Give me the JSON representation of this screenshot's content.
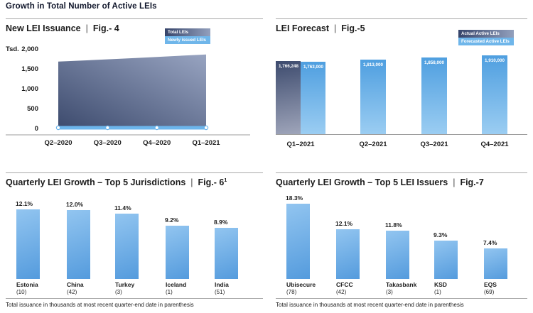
{
  "page_title": "Growth in Total Number of Active LEIs",
  "separator": "|",
  "colors": {
    "light_blue": "#6FB6EA",
    "dark_navy": "#3D4B6E",
    "gradient_gray_blue": "#9FA5BA",
    "bar_blue_top": "#4F9FE0",
    "bar_blue_bottom": "#9BCDF2",
    "bottom_bar_light": "#92C5F0",
    "bottom_bar_deep": "#549BDD",
    "rule_gray": "#A8A8A8"
  },
  "chart_data": [
    {
      "id": "fig4",
      "type": "area",
      "title": "New LEI Issuance",
      "fig_label": "Fig.- 4",
      "unit_label": "Tsd.",
      "legend_position": "top-right",
      "legend": [
        {
          "label": "Total LEIs",
          "swatch": "dark"
        },
        {
          "label": "Newly issued LEIs",
          "swatch": "light"
        }
      ],
      "x": [
        "Q2–2020",
        "Q3–2020",
        "Q4–2020",
        "Q1–2021"
      ],
      "series": [
        {
          "name": "Total LEIs",
          "values": [
            1700,
            1745,
            1805,
            1880
          ]
        },
        {
          "name": "Newly issued LEIs",
          "values": [
            45,
            50,
            55,
            60
          ]
        }
      ],
      "y_ticks": [
        "2,000",
        "1,500",
        "1,000",
        "500",
        "0"
      ],
      "ylim": [
        0,
        2000
      ],
      "grid": false
    },
    {
      "id": "fig5",
      "type": "bar",
      "title": "LEI Forecast",
      "fig_label": "Fig.-5",
      "legend_position": "top-right",
      "legend": [
        {
          "label": "Actual Active LEIs",
          "swatch": "dark"
        },
        {
          "label": "Forecasted Active LEIs",
          "swatch": "light"
        }
      ],
      "categories": [
        "Q1–2021",
        "Q2–2021",
        "Q3–2021",
        "Q4–2021"
      ],
      "bars": [
        {
          "category": "Q1–2021",
          "series": "Actual Active LEIs",
          "value": 1766248,
          "label": "1,766,248",
          "swatch": "dark"
        },
        {
          "category": "Q1–2021",
          "series": "Forecasted Active LEIs",
          "value": 1763000,
          "label": "1,763,000",
          "swatch": "light"
        },
        {
          "category": "Q2–2021",
          "series": "Forecasted Active LEIs",
          "value": 1813000,
          "label": "1,813,000",
          "swatch": "light"
        },
        {
          "category": "Q3–2021",
          "series": "Forecasted Active LEIs",
          "value": 1858000,
          "label": "1,858,000",
          "swatch": "light"
        },
        {
          "category": "Q4–2021",
          "series": "Forecasted Active LEIs",
          "value": 1910000,
          "label": "1,910,000",
          "swatch": "light"
        }
      ],
      "grid": false
    },
    {
      "id": "fig6",
      "type": "bar",
      "title": "Quarterly LEI Growth – Top 5 Jurisdictions",
      "fig_label": "Fig.- 6",
      "fig_superscript": "1",
      "categories": [
        "Estonia",
        "China",
        "Turkey",
        "Iceland",
        "India"
      ],
      "category_notes": [
        "(10)",
        "(42)",
        "(3)",
        "(1)",
        "(51)"
      ],
      "values": [
        12.1,
        12.0,
        11.4,
        9.2,
        8.9
      ],
      "value_labels": [
        "12.1%",
        "12.0%",
        "11.4%",
        "9.2%",
        "8.9%"
      ],
      "ylabel": "",
      "grid": false,
      "footnote": "Total issuance in thousands at most recent quarter-end date in parenthesis"
    },
    {
      "id": "fig7",
      "type": "bar",
      "title": "Quarterly LEI Growth – Top 5 LEI Issuers",
      "fig_label": "Fig.-7",
      "categories": [
        "Ubisecure",
        "CFCC",
        "Takasbank",
        "KSD",
        "EQS"
      ],
      "category_notes": [
        "(78)",
        "(42)",
        "(3)",
        "(1)",
        "(69)"
      ],
      "values": [
        18.3,
        12.1,
        11.8,
        9.3,
        7.4
      ],
      "value_labels": [
        "18.3%",
        "12.1%",
        "11.8%",
        "9.3%",
        "7.4%"
      ],
      "ylabel": "",
      "grid": false,
      "footnote": "Total issuance in thousands at most recent quarter-end date in parenthesis"
    }
  ]
}
